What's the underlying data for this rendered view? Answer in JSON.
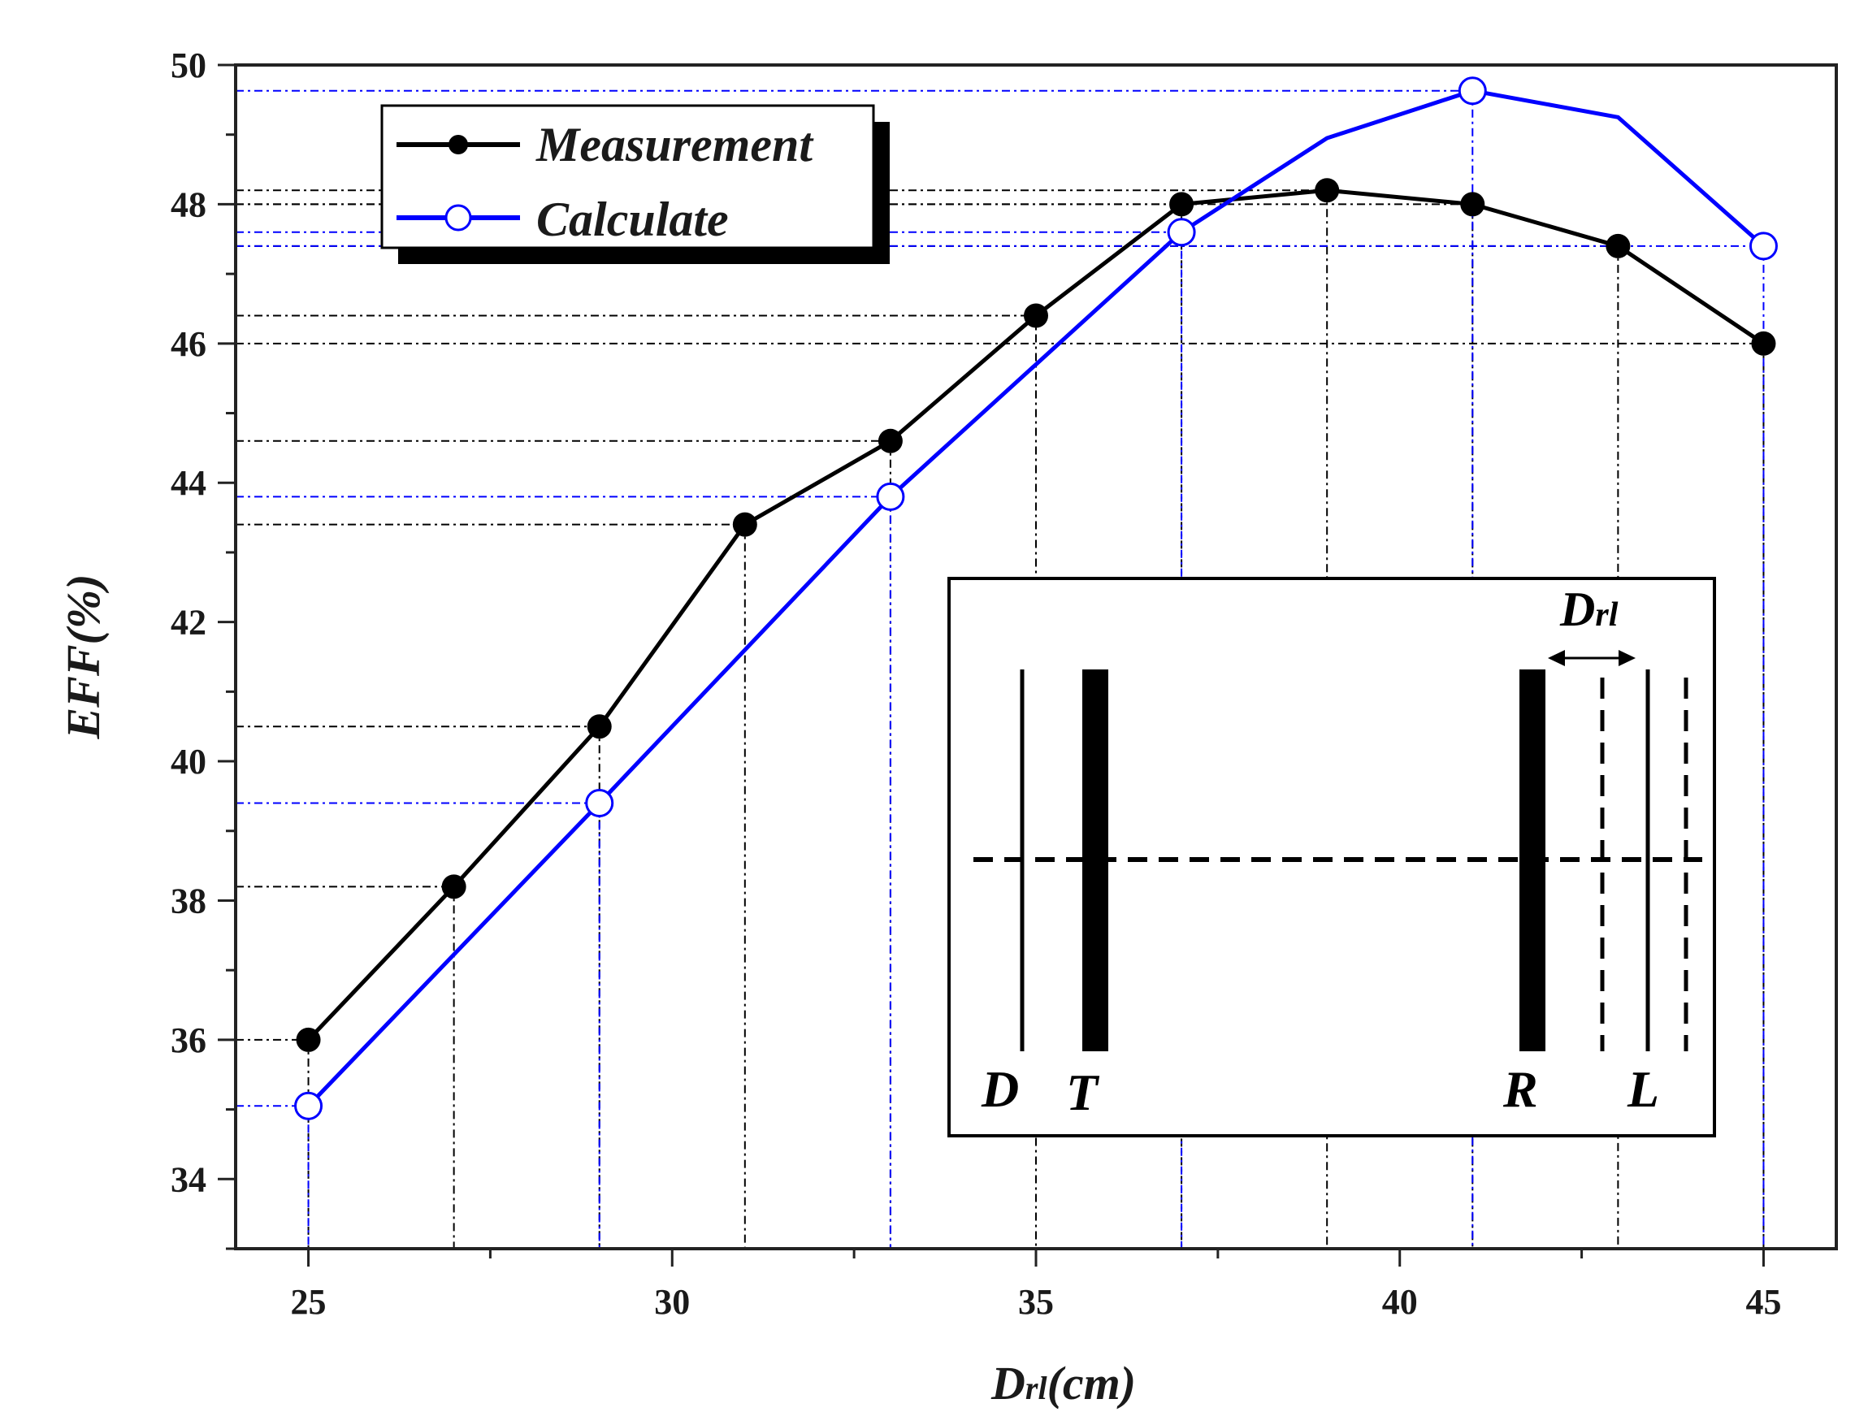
{
  "colors": {
    "measurement": "#000000",
    "calculate": "#0000ff",
    "guide_measurement": "#000000",
    "guide_calculate": "#0000ff"
  },
  "chart_data": {
    "type": "line",
    "xlabel_main": "D",
    "xlabel_sub": "rl",
    "xlabel_unit": "(cm)",
    "ylabel": "EFF(%)",
    "xlim": [
      24,
      46
    ],
    "ylim": [
      33,
      50
    ],
    "xticks": [
      25,
      30,
      35,
      40,
      45
    ],
    "yticks": [
      34,
      36,
      38,
      40,
      42,
      44,
      46,
      48,
      50
    ],
    "grid": false,
    "legend_position": "top-left",
    "series": [
      {
        "name": "Measurement",
        "marker": "filled-circle",
        "x": [
          25,
          27,
          29,
          31,
          33,
          35,
          37,
          39,
          41,
          43,
          45
        ],
        "y": [
          36.0,
          38.2,
          40.5,
          43.4,
          44.6,
          46.4,
          48.0,
          48.2,
          48.0,
          47.4,
          46.0
        ]
      },
      {
        "name": "Calculate",
        "marker": "open-circle",
        "x": [
          25,
          29,
          33,
          37,
          39,
          41,
          43,
          45
        ],
        "y": [
          35.05,
          39.4,
          43.8,
          47.6,
          48.95,
          49.63,
          49.25,
          47.4
        ],
        "marker_x": [
          25,
          29,
          33,
          37,
          41,
          45
        ]
      }
    ]
  },
  "inset": {
    "labels": {
      "D": "D",
      "T": "T",
      "R": "R",
      "L": "L"
    },
    "dim_label_main": "D",
    "dim_label_sub": "rl"
  }
}
